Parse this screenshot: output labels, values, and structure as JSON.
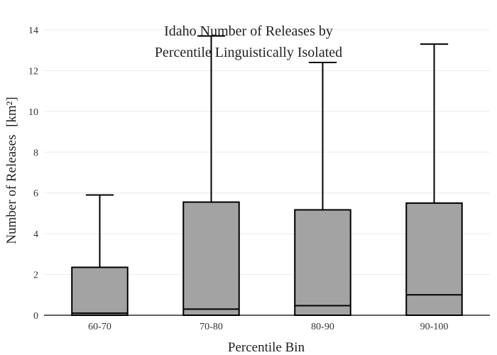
{
  "chart_data": {
    "type": "box",
    "title_lines": [
      "Idaho Number of Releases by",
      "Percentile Linguistically Isolated"
    ],
    "xlabel": "Percentile Bin",
    "ylabel": "Number of Releases",
    "ylabel_unit": "[km²]",
    "ylim": [
      0,
      14
    ],
    "yticks": [
      0,
      2,
      4,
      6,
      8,
      10,
      12,
      14
    ],
    "grid": true,
    "box_color": "#a3a3a3",
    "line_color": "#000000",
    "categories": [
      "60-70",
      "70-80",
      "80-90",
      "90-100"
    ],
    "boxes": [
      {
        "category": "60-70",
        "lower_whisker": 0,
        "q1": 0,
        "median": 0.1,
        "q3": 2.35,
        "upper_whisker": 5.9
      },
      {
        "category": "70-80",
        "lower_whisker": 0,
        "q1": 0,
        "median": 0.3,
        "q3": 5.55,
        "upper_whisker": 13.7
      },
      {
        "category": "80-90",
        "lower_whisker": 0,
        "q1": 0,
        "median": 0.47,
        "q3": 5.17,
        "upper_whisker": 12.4
      },
      {
        "category": "90-100",
        "lower_whisker": 0,
        "q1": 0,
        "median": 1.0,
        "q3": 5.5,
        "upper_whisker": 13.3
      }
    ]
  }
}
